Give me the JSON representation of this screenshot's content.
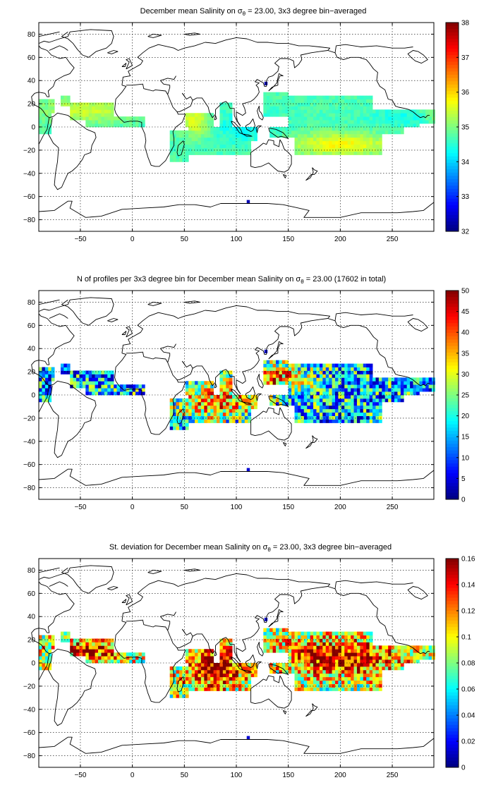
{
  "chart_data": [
    {
      "type": "heatmap",
      "title_before": "December mean Salinity on ",
      "sigma_symbol": "σ",
      "sigma_subscript": "θ",
      "title_after": " = 23.00, 3x3 degree bin−averaged",
      "xticks": [
        "−50",
        "0",
        "50",
        "100",
        "150",
        "200",
        "250"
      ],
      "yticks": [
        "80",
        "60",
        "40",
        "20",
        "0",
        "−20",
        "−40",
        "−60",
        "−80"
      ],
      "xlim": [
        -90,
        290
      ],
      "ylim": [
        -90,
        90
      ],
      "colorbar_ticks": [
        "38",
        "37",
        "36",
        "35",
        "34",
        "33",
        "32"
      ],
      "clim": [
        32,
        38
      ],
      "grid": true,
      "colormap": "jet",
      "field": "salinity"
    },
    {
      "type": "heatmap",
      "title_before": "N of profiles per 3x3 degree bin for December mean Salinity on ",
      "sigma_symbol": "σ",
      "sigma_subscript": "θ",
      "title_after": " = 23.00 (17602 in total)",
      "xticks": [
        "−50",
        "0",
        "50",
        "100",
        "150",
        "200",
        "250"
      ],
      "yticks": [
        "80",
        "60",
        "40",
        "20",
        "0",
        "−20",
        "−40",
        "−60",
        "−80"
      ],
      "xlim": [
        -90,
        290
      ],
      "ylim": [
        -90,
        90
      ],
      "colorbar_ticks": [
        "50",
        "45",
        "40",
        "35",
        "30",
        "25",
        "20",
        "15",
        "10",
        "5",
        "0"
      ],
      "clim": [
        0,
        50
      ],
      "grid": true,
      "colormap": "jet",
      "field": "count"
    },
    {
      "type": "heatmap",
      "title_before": "St. deviation for December mean Salinity on ",
      "sigma_symbol": "σ",
      "sigma_subscript": "θ",
      "title_after": " = 23.00, 3x3 degree bin−averaged",
      "xticks": [
        "−50",
        "0",
        "50",
        "100",
        "150",
        "200",
        "250"
      ],
      "yticks": [
        "80",
        "60",
        "40",
        "20",
        "0",
        "−20",
        "−40",
        "−60",
        "−80"
      ],
      "xlim": [
        -90,
        290
      ],
      "ylim": [
        -90,
        90
      ],
      "colorbar_ticks": [
        "0.16",
        "0.14",
        "0.12",
        "0.1",
        "0.08",
        "0.06",
        "0.04",
        "0.02",
        "0"
      ],
      "clim": [
        0,
        0.16
      ],
      "grid": true,
      "colormap": "jet",
      "field": "stdev"
    }
  ]
}
